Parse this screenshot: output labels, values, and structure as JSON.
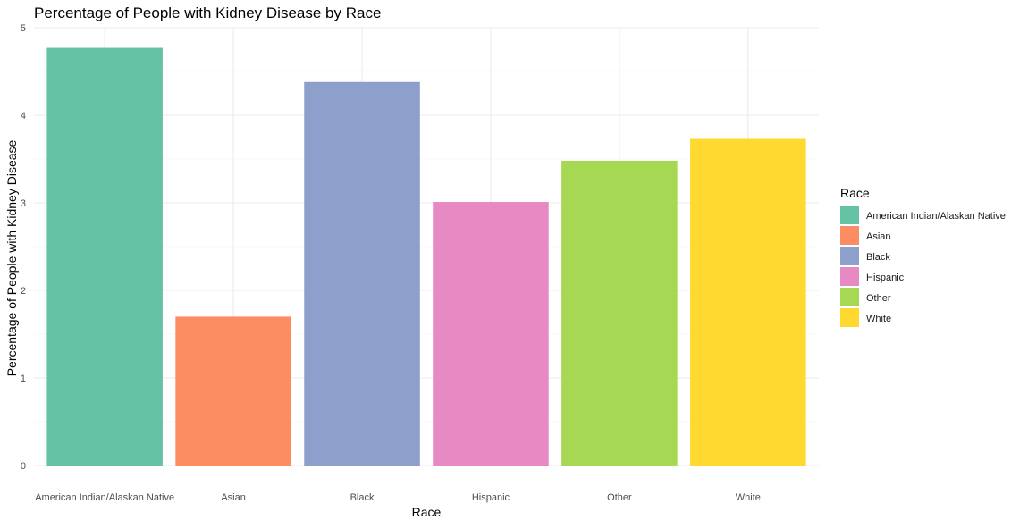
{
  "chart_data": {
    "type": "bar",
    "title": "Percentage of People with Kidney Disease by Race",
    "xlabel": "Race",
    "ylabel": "Percentage of People with Kidney Disease",
    "categories": [
      "American Indian/Alaskan Native",
      "Asian",
      "Black",
      "Hispanic",
      "Other",
      "White"
    ],
    "values": [
      4.77,
      1.7,
      4.38,
      3.01,
      3.48,
      3.74
    ],
    "colors": [
      "#66C2A5",
      "#FC8D62",
      "#8DA0CB",
      "#E78AC3",
      "#A6D854",
      "#FFD92F"
    ],
    "ylim": [
      0,
      5
    ],
    "yticks": [
      0,
      1,
      2,
      3,
      4,
      5
    ],
    "grid": true,
    "legend": {
      "title": "Race",
      "position": "right",
      "entries": [
        "American Indian/Alaskan Native",
        "Asian",
        "Black",
        "Hispanic",
        "Other",
        "White"
      ]
    }
  }
}
